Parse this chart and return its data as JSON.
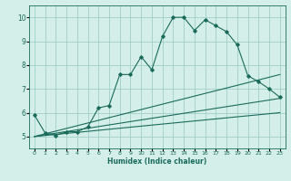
{
  "xlabel": "Humidex (Indice chaleur)",
  "bg_color": "#d4eeea",
  "line_color": "#1a6b5a",
  "grid_color": "#a0cfc8",
  "xlim": [
    -0.5,
    23.5
  ],
  "ylim": [
    4.5,
    10.5
  ],
  "xticks": [
    0,
    1,
    2,
    3,
    4,
    5,
    6,
    7,
    8,
    9,
    10,
    11,
    12,
    13,
    14,
    15,
    16,
    17,
    18,
    19,
    20,
    21,
    22,
    23
  ],
  "yticks": [
    5,
    6,
    7,
    8,
    9,
    10
  ],
  "line1_x": [
    0,
    1,
    2,
    3,
    4,
    5,
    6,
    7,
    8,
    9,
    10,
    11,
    12,
    13,
    14,
    15,
    16,
    17,
    18,
    19,
    20,
    21,
    22,
    23
  ],
  "line1_y": [
    5.9,
    5.15,
    5.05,
    5.2,
    5.2,
    5.4,
    6.2,
    6.3,
    7.6,
    7.6,
    8.35,
    7.8,
    9.2,
    10.0,
    10.0,
    9.45,
    9.9,
    9.65,
    9.4,
    8.85,
    7.55,
    7.3,
    7.0,
    6.65
  ],
  "line2_x": [
    0,
    23
  ],
  "line2_y": [
    5.0,
    7.6
  ],
  "line3_x": [
    0,
    23
  ],
  "line3_y": [
    5.0,
    6.6
  ],
  "line4_x": [
    0,
    23
  ],
  "line4_y": [
    5.0,
    6.0
  ]
}
